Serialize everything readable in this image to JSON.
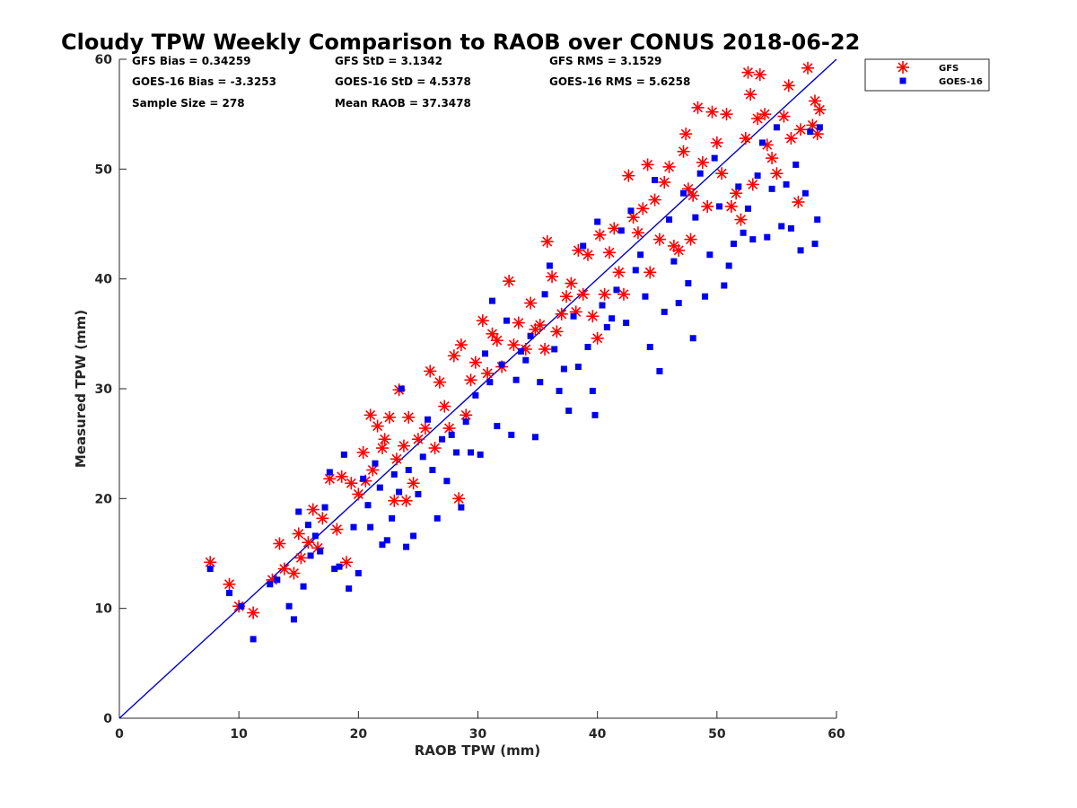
{
  "chart_data": {
    "type": "scatter",
    "title": "Cloudy TPW Weekly Comparison to RAOB over CONUS 2018-06-22",
    "xlabel": "RAOB TPW (mm)",
    "ylabel": "Measured TPW (mm)",
    "xlim": [
      0,
      60
    ],
    "ylim": [
      0,
      60
    ],
    "xticks": [
      0,
      10,
      20,
      30,
      40,
      50,
      60
    ],
    "yticks": [
      0,
      10,
      20,
      30,
      40,
      50,
      60
    ],
    "grid": false,
    "legend_position": "outside-top-right",
    "reference_line": {
      "type": "1:1",
      "color": "#0000cc"
    },
    "stats": [
      {
        "key": "gfs_bias",
        "text": "GFS Bias = 0.34259"
      },
      {
        "key": "gfs_std",
        "text": "GFS StD = 3.1342"
      },
      {
        "key": "gfs_rms",
        "text": "GFS RMS = 3.1529"
      },
      {
        "key": "goes_bias",
        "text": "GOES-16 Bias = -3.3253"
      },
      {
        "key": "goes_std",
        "text": "GOES-16 StD = 4.5378"
      },
      {
        "key": "goes_rms",
        "text": "GOES-16 RMS = 5.6258"
      },
      {
        "key": "sample_size",
        "text": "Sample Size = 278"
      },
      {
        "key": "mean_raob",
        "text": "Mean RAOB = 37.3478"
      }
    ],
    "series": [
      {
        "name": "GFS",
        "marker": "asterisk",
        "color": "#ff0000",
        "points": [
          [
            7.6,
            14.2
          ],
          [
            9.2,
            12.2
          ],
          [
            10.0,
            10.2
          ],
          [
            11.2,
            9.6
          ],
          [
            12.8,
            12.6
          ],
          [
            13.4,
            15.9
          ],
          [
            13.8,
            13.6
          ],
          [
            14.6,
            13.2
          ],
          [
            15.0,
            16.8
          ],
          [
            15.2,
            14.6
          ],
          [
            15.8,
            16.0
          ],
          [
            16.2,
            19.0
          ],
          [
            16.6,
            15.5
          ],
          [
            17.0,
            18.2
          ],
          [
            17.6,
            21.8
          ],
          [
            18.2,
            17.2
          ],
          [
            18.6,
            22.0
          ],
          [
            19.0,
            14.2
          ],
          [
            19.4,
            21.4
          ],
          [
            20.0,
            20.4
          ],
          [
            20.4,
            24.2
          ],
          [
            20.6,
            21.6
          ],
          [
            21.0,
            27.6
          ],
          [
            21.2,
            22.6
          ],
          [
            21.6,
            26.6
          ],
          [
            22.0,
            24.6
          ],
          [
            22.2,
            25.4
          ],
          [
            22.6,
            27.4
          ],
          [
            23.0,
            19.8
          ],
          [
            23.2,
            23.6
          ],
          [
            23.4,
            29.9
          ],
          [
            23.8,
            24.8
          ],
          [
            24.0,
            19.8
          ],
          [
            24.2,
            27.4
          ],
          [
            24.6,
            21.4
          ],
          [
            25.0,
            25.4
          ],
          [
            25.6,
            26.4
          ],
          [
            26.0,
            31.6
          ],
          [
            26.4,
            24.6
          ],
          [
            26.8,
            30.6
          ],
          [
            27.2,
            28.4
          ],
          [
            27.6,
            26.4
          ],
          [
            28.0,
            33.0
          ],
          [
            28.4,
            20.0
          ],
          [
            28.6,
            34.0
          ],
          [
            29.0,
            27.6
          ],
          [
            29.4,
            30.8
          ],
          [
            29.8,
            32.4
          ],
          [
            30.4,
            36.2
          ],
          [
            30.8,
            31.4
          ],
          [
            31.2,
            35.0
          ],
          [
            31.6,
            34.4
          ],
          [
            32.0,
            32.0
          ],
          [
            32.6,
            39.8
          ],
          [
            33.0,
            34.0
          ],
          [
            33.4,
            36.0
          ],
          [
            34.0,
            33.6
          ],
          [
            34.4,
            37.8
          ],
          [
            34.8,
            35.4
          ],
          [
            35.2,
            35.8
          ],
          [
            35.6,
            33.6
          ],
          [
            35.8,
            43.4
          ],
          [
            36.2,
            40.2
          ],
          [
            36.6,
            35.2
          ],
          [
            37.0,
            36.8
          ],
          [
            37.4,
            38.4
          ],
          [
            37.8,
            39.6
          ],
          [
            38.2,
            37.0
          ],
          [
            38.4,
            42.6
          ],
          [
            38.8,
            38.6
          ],
          [
            39.2,
            42.2
          ],
          [
            39.6,
            36.6
          ],
          [
            40.0,
            34.6
          ],
          [
            40.2,
            44.0
          ],
          [
            40.6,
            38.6
          ],
          [
            41.0,
            42.4
          ],
          [
            41.4,
            44.6
          ],
          [
            41.8,
            40.6
          ],
          [
            42.2,
            38.6
          ],
          [
            42.6,
            49.4
          ],
          [
            43.0,
            45.6
          ],
          [
            43.4,
            44.2
          ],
          [
            43.8,
            46.4
          ],
          [
            44.2,
            50.4
          ],
          [
            44.4,
            40.6
          ],
          [
            44.8,
            47.2
          ],
          [
            45.2,
            43.6
          ],
          [
            45.6,
            48.8
          ],
          [
            46.0,
            50.2
          ],
          [
            46.4,
            43.0
          ],
          [
            46.8,
            42.6
          ],
          [
            47.2,
            51.6
          ],
          [
            47.4,
            53.2
          ],
          [
            47.6,
            48.2
          ],
          [
            47.8,
            43.6
          ],
          [
            48.0,
            47.6
          ],
          [
            48.4,
            55.6
          ],
          [
            48.8,
            50.6
          ],
          [
            49.2,
            46.6
          ],
          [
            49.6,
            55.2
          ],
          [
            50.0,
            52.4
          ],
          [
            50.4,
            49.6
          ],
          [
            50.8,
            55.0
          ],
          [
            51.2,
            46.6
          ],
          [
            51.6,
            47.8
          ],
          [
            52.0,
            45.4
          ],
          [
            52.4,
            52.8
          ],
          [
            52.6,
            58.8
          ],
          [
            52.8,
            56.8
          ],
          [
            53.0,
            48.6
          ],
          [
            53.4,
            54.6
          ],
          [
            53.6,
            58.6
          ],
          [
            54.0,
            55.0
          ],
          [
            54.2,
            52.2
          ],
          [
            54.6,
            51.0
          ],
          [
            55.0,
            49.6
          ],
          [
            55.6,
            54.8
          ],
          [
            56.0,
            57.6
          ],
          [
            56.2,
            52.8
          ],
          [
            56.8,
            47.0
          ],
          [
            57.0,
            53.6
          ],
          [
            57.6,
            59.2
          ],
          [
            58.0,
            54.0
          ],
          [
            58.2,
            56.2
          ],
          [
            58.4,
            53.2
          ],
          [
            58.6,
            55.4
          ]
        ]
      },
      {
        "name": "GOES-16",
        "marker": "square",
        "color": "#0000ee",
        "points": [
          [
            7.6,
            13.6
          ],
          [
            9.2,
            11.4
          ],
          [
            10.2,
            10.2
          ],
          [
            11.2,
            7.2
          ],
          [
            12.6,
            12.2
          ],
          [
            13.2,
            12.6
          ],
          [
            14.2,
            10.2
          ],
          [
            14.6,
            9.0
          ],
          [
            15.0,
            18.8
          ],
          [
            15.4,
            12.0
          ],
          [
            15.8,
            17.6
          ],
          [
            16.0,
            14.8
          ],
          [
            16.4,
            16.6
          ],
          [
            16.8,
            15.2
          ],
          [
            17.2,
            19.2
          ],
          [
            17.6,
            22.4
          ],
          [
            18.0,
            13.6
          ],
          [
            18.4,
            13.8
          ],
          [
            18.8,
            24.0
          ],
          [
            19.2,
            11.8
          ],
          [
            19.6,
            17.4
          ],
          [
            20.0,
            13.2
          ],
          [
            20.4,
            21.8
          ],
          [
            20.8,
            19.4
          ],
          [
            21.0,
            17.4
          ],
          [
            21.4,
            23.2
          ],
          [
            21.8,
            21.0
          ],
          [
            22.0,
            15.8
          ],
          [
            22.4,
            16.2
          ],
          [
            22.8,
            18.2
          ],
          [
            23.0,
            22.2
          ],
          [
            23.4,
            20.6
          ],
          [
            23.6,
            30.0
          ],
          [
            24.0,
            15.6
          ],
          [
            24.2,
            22.6
          ],
          [
            24.6,
            16.6
          ],
          [
            25.0,
            20.4
          ],
          [
            25.4,
            23.8
          ],
          [
            25.8,
            27.2
          ],
          [
            26.2,
            22.6
          ],
          [
            26.6,
            18.2
          ],
          [
            27.0,
            25.4
          ],
          [
            27.4,
            21.6
          ],
          [
            27.8,
            25.8
          ],
          [
            28.2,
            24.2
          ],
          [
            28.6,
            19.2
          ],
          [
            29.0,
            27.0
          ],
          [
            29.4,
            24.2
          ],
          [
            29.8,
            29.4
          ],
          [
            30.2,
            24.0
          ],
          [
            30.6,
            33.2
          ],
          [
            31.0,
            30.6
          ],
          [
            31.2,
            38.0
          ],
          [
            31.6,
            26.6
          ],
          [
            32.0,
            32.2
          ],
          [
            32.4,
            36.2
          ],
          [
            32.8,
            25.8
          ],
          [
            33.2,
            30.8
          ],
          [
            33.6,
            33.4
          ],
          [
            34.0,
            32.6
          ],
          [
            34.4,
            34.8
          ],
          [
            34.8,
            25.6
          ],
          [
            35.2,
            30.6
          ],
          [
            35.6,
            38.6
          ],
          [
            36.0,
            41.2
          ],
          [
            36.4,
            33.6
          ],
          [
            36.8,
            29.8
          ],
          [
            37.2,
            31.8
          ],
          [
            37.6,
            28.0
          ],
          [
            38.0,
            36.6
          ],
          [
            38.4,
            32.0
          ],
          [
            38.8,
            43.0
          ],
          [
            39.2,
            33.8
          ],
          [
            39.6,
            29.8
          ],
          [
            39.8,
            27.6
          ],
          [
            40.0,
            45.2
          ],
          [
            40.4,
            37.6
          ],
          [
            40.8,
            35.6
          ],
          [
            41.2,
            36.4
          ],
          [
            41.6,
            39.0
          ],
          [
            42.0,
            44.4
          ],
          [
            42.4,
            36.0
          ],
          [
            42.8,
            46.2
          ],
          [
            43.2,
            40.8
          ],
          [
            43.6,
            42.2
          ],
          [
            44.0,
            38.4
          ],
          [
            44.4,
            33.8
          ],
          [
            44.8,
            49.0
          ],
          [
            45.2,
            31.6
          ],
          [
            45.6,
            37.0
          ],
          [
            46.0,
            45.4
          ],
          [
            46.4,
            41.6
          ],
          [
            46.8,
            37.8
          ],
          [
            47.2,
            47.8
          ],
          [
            47.6,
            39.6
          ],
          [
            48.0,
            34.6
          ],
          [
            48.2,
            45.6
          ],
          [
            48.6,
            49.6
          ],
          [
            49.0,
            38.4
          ],
          [
            49.4,
            42.2
          ],
          [
            49.8,
            51.0
          ],
          [
            50.2,
            46.6
          ],
          [
            50.6,
            39.4
          ],
          [
            51.0,
            41.2
          ],
          [
            51.4,
            43.2
          ],
          [
            51.8,
            48.4
          ],
          [
            52.2,
            44.2
          ],
          [
            52.6,
            46.4
          ],
          [
            53.0,
            43.6
          ],
          [
            53.4,
            49.4
          ],
          [
            53.8,
            52.4
          ],
          [
            54.2,
            43.8
          ],
          [
            54.6,
            48.2
          ],
          [
            55.0,
            53.8
          ],
          [
            55.4,
            44.8
          ],
          [
            55.8,
            48.6
          ],
          [
            56.2,
            44.6
          ],
          [
            56.6,
            50.4
          ],
          [
            57.0,
            42.6
          ],
          [
            57.4,
            47.8
          ],
          [
            57.8,
            53.4
          ],
          [
            58.2,
            43.2
          ],
          [
            58.4,
            45.4
          ],
          [
            58.6,
            53.8
          ]
        ]
      }
    ]
  }
}
